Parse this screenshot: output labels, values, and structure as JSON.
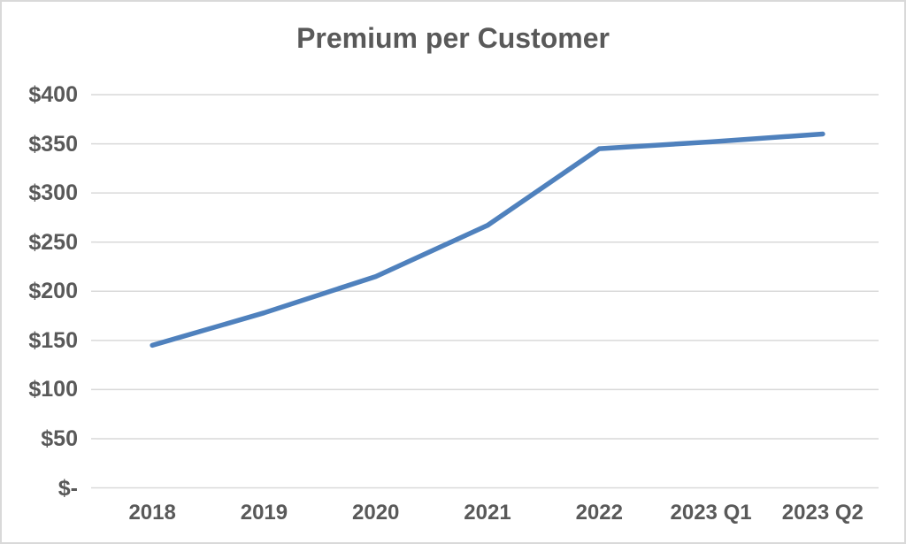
{
  "chart_data": {
    "type": "line",
    "title": "Premium per Customer",
    "categories": [
      "2018",
      "2019",
      "2020",
      "2021",
      "2022",
      "2023 Q1",
      "2023 Q2"
    ],
    "series": [
      {
        "name": "Premium per Customer",
        "values": [
          145,
          178,
          215,
          267,
          345,
          352,
          360
        ]
      }
    ],
    "xlabel": "",
    "ylabel": "",
    "ylim": [
      0,
      400
    ],
    "y_tick_interval": 50,
    "y_tick_labels": [
      "$-",
      "$50",
      "$100",
      "$150",
      "$200",
      "$250",
      "$300",
      "$350",
      "$400"
    ],
    "grid": "horizontal",
    "legend": "none",
    "colors": {
      "line": "#4f81bd",
      "text": "#595959",
      "gridline": "#d9d9d9",
      "border": "#d9d9d9",
      "background": "#ffffff"
    }
  }
}
